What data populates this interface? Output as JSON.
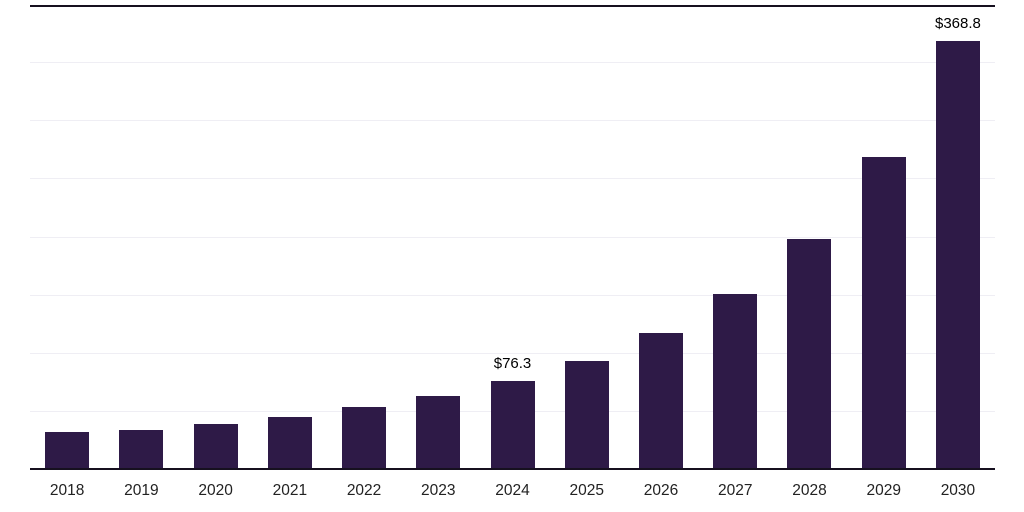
{
  "chart_data": {
    "type": "bar",
    "title": "",
    "xlabel": "",
    "ylabel": "",
    "categories": [
      "2018",
      "2019",
      "2020",
      "2021",
      "2022",
      "2023",
      "2024",
      "2025",
      "2026",
      "2027",
      "2028",
      "2029",
      "2030"
    ],
    "values": [
      32.5,
      34.4,
      39.5,
      45.6,
      54.2,
      63.7,
      76.3,
      93.8,
      117.8,
      151.4,
      198.7,
      269.2,
      368.8
    ],
    "data_labels": {
      "2024": "$76.3",
      "2030": "$368.8"
    },
    "ylim": [
      0,
      400
    ],
    "grid_step": 50,
    "grid": true,
    "legend": false
  },
  "styles": {
    "bar_color": "#2E1A47",
    "grid_color": "#efeef4",
    "axis_color": "#16101f",
    "tick_label_color": "#222222",
    "data_label_color": "#000000"
  }
}
